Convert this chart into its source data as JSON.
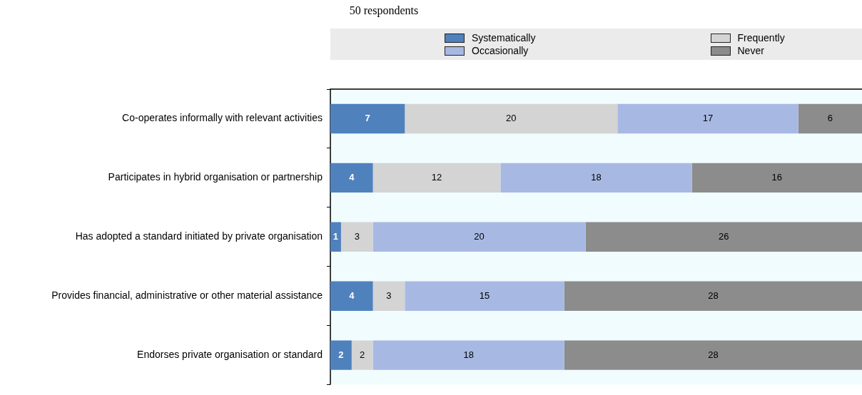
{
  "chart_data": {
    "type": "bar",
    "orientation": "horizontal",
    "stacked": true,
    "title": "50 respondents",
    "categories": [
      "Co-operates informally with relevant activities",
      "Participates in hybrid organisation or partnership",
      "Has adopted a standard initiated by private organisation",
      "Provides financial, administrative or other material assistance",
      "Endorses private organisation or standard"
    ],
    "series": [
      {
        "name": "Systematically",
        "color": "#4f81bd",
        "values": [
          7,
          4,
          1,
          4,
          2
        ]
      },
      {
        "name": "Frequently",
        "color": "#d4d4d4",
        "values": [
          20,
          12,
          3,
          3,
          2
        ]
      },
      {
        "name": "Occasionally",
        "color": "#a7b9e3",
        "values": [
          17,
          18,
          20,
          15,
          18
        ]
      },
      {
        "name": "Never",
        "color": "#8c8c8c",
        "values": [
          6,
          16,
          26,
          28,
          28
        ]
      }
    ],
    "xlim": [
      0,
      50
    ],
    "tick_labels": "y",
    "legend": "top",
    "data_labels": true
  }
}
